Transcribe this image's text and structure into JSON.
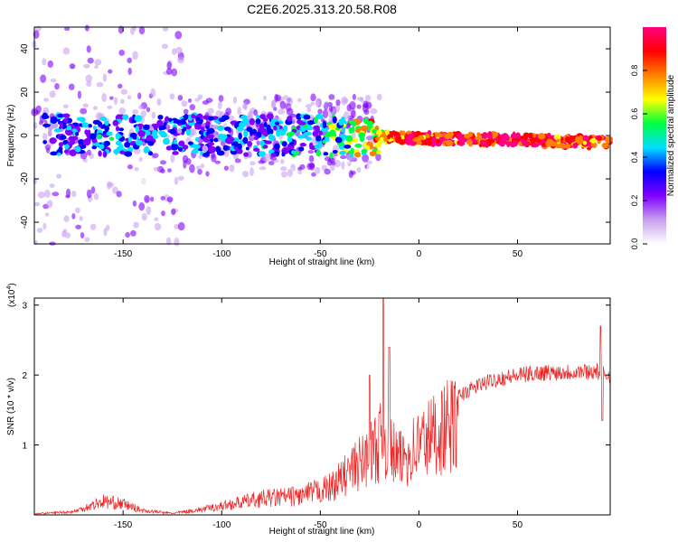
{
  "title": "C2E6.2025.313.20.58.R08",
  "chart_data": [
    {
      "type": "heatmap",
      "title": "C2E6.2025.313.20.58.R08",
      "xlabel": "Height of straight line (km)",
      "ylabel": "Frequency (Hz)",
      "xlim": [
        -195,
        97
      ],
      "ylim": [
        -50,
        50
      ],
      "xticks": [
        -150,
        -100,
        -50,
        0,
        50
      ],
      "yticks": [
        -40,
        -20,
        0,
        20,
        40
      ],
      "colorbar": {
        "label": "Normalized spectral amplitude",
        "range": [
          0.0,
          1.0
        ],
        "ticks": [
          0.0,
          0.2,
          0.4,
          0.6,
          0.8
        ],
        "colors": [
          "#ffffff",
          "#c8a0f0",
          "#8000ff",
          "#0000ff",
          "#00e0ff",
          "#00ff40",
          "#ffff00",
          "#ff8000",
          "#ff0000",
          "#ff0080"
        ]
      },
      "description_points": [
        {
          "x": -160,
          "y": 0,
          "v": 0.35
        },
        {
          "x": -100,
          "y": 0,
          "v": 0.3
        },
        {
          "x": -50,
          "y": 0,
          "v": 0.4
        },
        {
          "x": -10,
          "y": -1,
          "v": 0.85
        },
        {
          "x": 50,
          "y": -2,
          "v": 0.9
        },
        {
          "x": 90,
          "y": -3,
          "v": 0.85
        }
      ]
    },
    {
      "type": "line",
      "xlabel": "Height of straight line (km)",
      "ylabel": "SNR (10 * v/v)",
      "yscale_label": "(x10",
      "yscale_exp": "4",
      "yscale_close": ")",
      "xlim": [
        -195,
        97
      ],
      "ylim": [
        0,
        3.1
      ],
      "xticks": [
        -150,
        -100,
        -50,
        0,
        50
      ],
      "yticks": [
        1,
        2,
        3
      ],
      "color": "#ee2222",
      "envelope": [
        {
          "x": -195,
          "y": 0.02
        },
        {
          "x": -175,
          "y": 0.06
        },
        {
          "x": -160,
          "y": 0.25
        },
        {
          "x": -150,
          "y": 0.2
        },
        {
          "x": -140,
          "y": 0.08
        },
        {
          "x": -125,
          "y": 0.03
        },
        {
          "x": -110,
          "y": 0.1
        },
        {
          "x": -95,
          "y": 0.2
        },
        {
          "x": -80,
          "y": 0.3
        },
        {
          "x": -60,
          "y": 0.35
        },
        {
          "x": -45,
          "y": 0.5
        },
        {
          "x": -35,
          "y": 0.8
        },
        {
          "x": -25,
          "y": 1.1
        },
        {
          "x": -18,
          "y": 1.4
        },
        {
          "x": -10,
          "y": 1.0
        },
        {
          "x": 0,
          "y": 1.3
        },
        {
          "x": 10,
          "y": 1.55
        },
        {
          "x": 20,
          "y": 1.7
        },
        {
          "x": 30,
          "y": 1.85
        },
        {
          "x": 40,
          "y": 1.95
        },
        {
          "x": 60,
          "y": 2.03
        },
        {
          "x": 80,
          "y": 2.05
        },
        {
          "x": 90,
          "y": 2.05
        },
        {
          "x": 97,
          "y": 2.0
        }
      ],
      "spikes": [
        {
          "x": -18,
          "y": 3.1
        },
        {
          "x": -15,
          "y": 2.4
        },
        {
          "x": -25,
          "y": 2.0
        },
        {
          "x": 92,
          "y": 2.7
        },
        {
          "x": 93,
          "y": 1.35
        }
      ]
    }
  ]
}
